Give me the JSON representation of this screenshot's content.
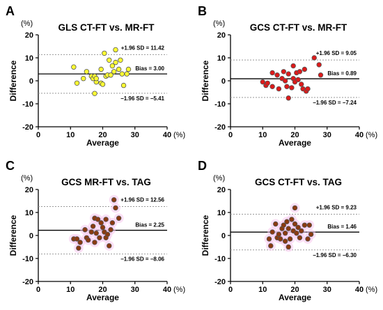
{
  "colors": {
    "yellow_fill": "#ffff33",
    "red_fill": "#dd1a1a",
    "brown_fill": "#8b3a10",
    "pink_glow": "#f7c8ee",
    "point_stroke": "#555555",
    "ref_line": "#999999",
    "bias_line": "#000000"
  },
  "chart_data": [
    {
      "panel": "A",
      "type": "scatter",
      "title": "GLS CT-FT vs.  MR-FT",
      "xlabel": "Average",
      "ylabel": "Difference",
      "x_unit": "(%)",
      "y_unit": "(%)",
      "xlim": [
        0,
        40
      ],
      "ylim": [
        -20,
        20
      ],
      "xticks": [
        0,
        10,
        20,
        30,
        40
      ],
      "yticks": [
        20,
        10,
        0,
        -10,
        -20
      ],
      "marker_color": "yellow",
      "glow": false,
      "bias": 3.0,
      "upper_loa": 11.42,
      "lower_loa": -5.41,
      "upper_label": "+1.96 SD = 11.42",
      "bias_label": "Bias = 3.00",
      "lower_label": "−1.96 SD = −5.41",
      "points": [
        [
          11,
          6
        ],
        [
          12,
          -1
        ],
        [
          14,
          1
        ],
        [
          15,
          4
        ],
        [
          16.5,
          2
        ],
        [
          17,
          1
        ],
        [
          17.5,
          2
        ],
        [
          17.5,
          -5.5
        ],
        [
          18,
          -0.5
        ],
        [
          18,
          1
        ],
        [
          19.5,
          5
        ],
        [
          19.5,
          -1
        ],
        [
          20,
          -1.5
        ],
        [
          20.5,
          12
        ],
        [
          21,
          2
        ],
        [
          21.5,
          2.5
        ],
        [
          22,
          9
        ],
        [
          22.5,
          2.5
        ],
        [
          23,
          6.5
        ],
        [
          23.5,
          4
        ],
        [
          24,
          13.5
        ],
        [
          24,
          8
        ],
        [
          25,
          5
        ],
        [
          25.5,
          9
        ],
        [
          26,
          3
        ],
        [
          26.5,
          -2
        ],
        [
          27.5,
          3
        ],
        [
          28,
          5
        ]
      ]
    },
    {
      "panel": "B",
      "type": "scatter",
      "title": "GCS CT-FT vs. MR-FT",
      "xlabel": "Average",
      "ylabel": "Difference",
      "x_unit": "(%)",
      "y_unit": "(%)",
      "xlim": [
        0,
        40
      ],
      "ylim": [
        -20,
        20
      ],
      "xticks": [
        0,
        10,
        20,
        30,
        40
      ],
      "yticks": [
        20,
        10,
        0,
        -10,
        -20
      ],
      "marker_color": "red",
      "glow": false,
      "bias": 0.89,
      "upper_loa": 9.05,
      "lower_loa": -7.24,
      "upper_label": "+1.96 SD = 9.05",
      "bias_label": "Bias = 0.89",
      "lower_label": "−1.96 SD = −7.24",
      "points": [
        [
          10,
          -0.5
        ],
        [
          11,
          -2
        ],
        [
          11.5,
          -1
        ],
        [
          13,
          -2.5
        ],
        [
          13,
          3.5
        ],
        [
          14.5,
          2.5
        ],
        [
          15,
          -3.5
        ],
        [
          16,
          1
        ],
        [
          16.5,
          4
        ],
        [
          17,
          0
        ],
        [
          17.5,
          -2.5
        ],
        [
          18,
          3
        ],
        [
          18,
          -7.5
        ],
        [
          19,
          -3
        ],
        [
          19.5,
          1
        ],
        [
          19.5,
          6.5
        ],
        [
          20,
          -0.5
        ],
        [
          20.5,
          3.5
        ],
        [
          21,
          0.5
        ],
        [
          21.5,
          4
        ],
        [
          22,
          -1.5
        ],
        [
          22.5,
          -3.5
        ],
        [
          23,
          5
        ],
        [
          23.5,
          -4.5
        ],
        [
          24,
          -3.5
        ],
        [
          26,
          10
        ],
        [
          27.5,
          7
        ],
        [
          28,
          2.5
        ]
      ]
    },
    {
      "panel": "C",
      "type": "scatter",
      "title": "GCS MR-FT vs. TAG",
      "xlabel": "Average",
      "ylabel": "Difference",
      "x_unit": "(%)",
      "y_unit": "(%)",
      "xlim": [
        0,
        40
      ],
      "ylim": [
        -20,
        20
      ],
      "xticks": [
        0,
        10,
        20,
        30,
        40
      ],
      "yticks": [
        20,
        10,
        0,
        -10,
        -20
      ],
      "marker_color": "brown",
      "glow": true,
      "bias": 2.25,
      "upper_loa": 12.56,
      "lower_loa": -8.06,
      "upper_label": "+1.96 SD = 12.56",
      "bias_label": "Bias = 2.25",
      "lower_label": "−1.96 SD = −8.06",
      "points": [
        [
          11,
          -1.5
        ],
        [
          12,
          -1.5
        ],
        [
          12.5,
          -5.5
        ],
        [
          13,
          -3
        ],
        [
          14.5,
          2.5
        ],
        [
          15,
          -1
        ],
        [
          15.5,
          -2
        ],
        [
          16.5,
          1.5
        ],
        [
          17,
          4
        ],
        [
          17.5,
          7.5
        ],
        [
          17.5,
          -3
        ],
        [
          18,
          1
        ],
        [
          18.5,
          7
        ],
        [
          19,
          -1
        ],
        [
          19.5,
          5.5
        ],
        [
          20,
          3.5
        ],
        [
          20.5,
          1.5
        ],
        [
          21,
          -1
        ],
        [
          21,
          7
        ],
        [
          21.5,
          0.5
        ],
        [
          22,
          -4.5
        ],
        [
          22.5,
          2.5
        ],
        [
          23,
          5.5
        ],
        [
          23.5,
          15.5
        ],
        [
          24,
          12
        ],
        [
          25,
          7.5
        ]
      ]
    },
    {
      "panel": "D",
      "type": "scatter",
      "title": "GCS CT-FT vs. TAG",
      "xlabel": "Average",
      "ylabel": "Difference",
      "x_unit": "(%)",
      "y_unit": "(%)",
      "xlim": [
        0,
        40
      ],
      "ylim": [
        -20,
        20
      ],
      "xticks": [
        0,
        10,
        20,
        30,
        40
      ],
      "yticks": [
        20,
        10,
        0,
        -10,
        -20
      ],
      "marker_color": "brown",
      "glow": true,
      "bias": 1.46,
      "upper_loa": 9.23,
      "lower_loa": -6.3,
      "upper_label": "+1.96 SD = 9.23",
      "bias_label": "Bias = 1.46",
      "lower_label": "−1.96 SD = −6.30",
      "points": [
        [
          12,
          -1.5
        ],
        [
          12.5,
          -4.5
        ],
        [
          13,
          1.5
        ],
        [
          14,
          5
        ],
        [
          14.5,
          -1
        ],
        [
          15,
          0.5
        ],
        [
          15.5,
          -1.5
        ],
        [
          16,
          3
        ],
        [
          16.5,
          4.5
        ],
        [
          17,
          -2.5
        ],
        [
          17,
          1
        ],
        [
          17.5,
          6
        ],
        [
          18,
          -5
        ],
        [
          18,
          3
        ],
        [
          18.5,
          -1.5
        ],
        [
          19,
          7
        ],
        [
          19.5,
          2
        ],
        [
          20,
          5
        ],
        [
          20,
          12
        ],
        [
          20.5,
          1
        ],
        [
          21,
          3.5
        ],
        [
          21.5,
          -1
        ],
        [
          22,
          2
        ],
        [
          23,
          4.5
        ],
        [
          24,
          -1.5
        ],
        [
          24.5,
          4.5
        ],
        [
          25,
          0.5
        ]
      ]
    }
  ]
}
